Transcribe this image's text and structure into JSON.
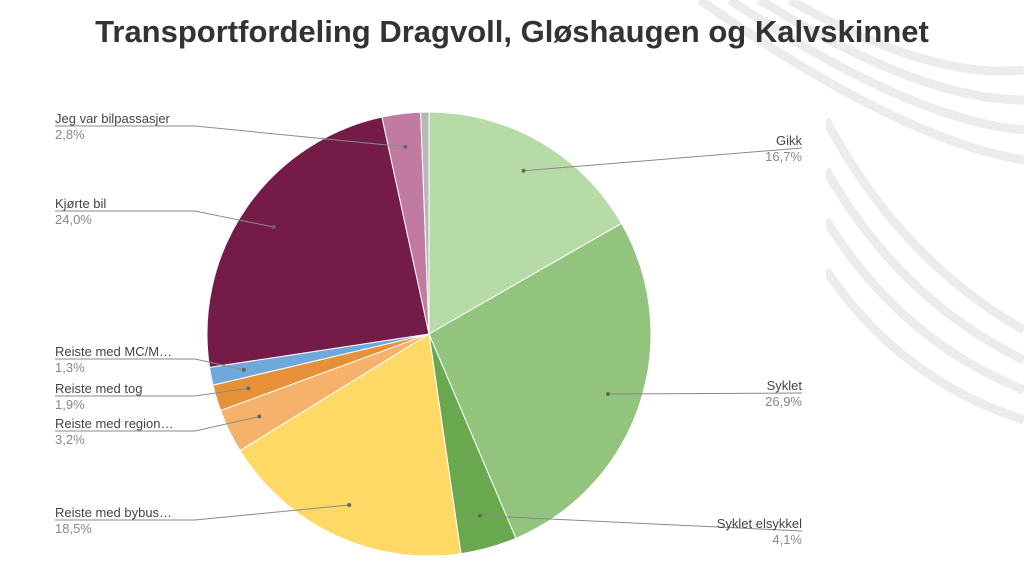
{
  "slide": {
    "title": "Transportfordeling Dragvoll, Gløshaugen og Kalvskinnet"
  },
  "chart_data": {
    "type": "pie",
    "title": "Transportfordeling Dragvoll, Gløshaugen og Kalvskinnet",
    "legend": "none (callout labels)",
    "slices": [
      {
        "label": "Gikk",
        "value_label": "16,7%",
        "value": 16.7,
        "color": "#b7dba7"
      },
      {
        "label": "Syklet",
        "value_label": "26,9%",
        "value": 26.9,
        "color": "#93c47d"
      },
      {
        "label": "Syklet elsykkel",
        "value_label": "4,1%",
        "value": 4.1,
        "color": "#6aa84f"
      },
      {
        "label": "Reiste med bybus…",
        "value_label": "18,5%",
        "value": 18.5,
        "color": "#ffd966"
      },
      {
        "label": "Reiste med region…",
        "value_label": "3,2%",
        "value": 3.2,
        "color": "#f6b26b"
      },
      {
        "label": "Reiste med tog",
        "value_label": "1,9%",
        "value": 1.9,
        "color": "#e69138"
      },
      {
        "label": "Reiste med MC/M…",
        "value_label": "1,3%",
        "value": 1.3,
        "color": "#6fa8dc"
      },
      {
        "label": "Kjørte bil",
        "value_label": "24,0%",
        "value": 24.0,
        "color": "#741b47"
      },
      {
        "label": "Jeg var bilpassasjer",
        "value_label": "2,8%",
        "value": 2.8,
        "color": "#c27ba0"
      },
      {
        "value": 0.6,
        "color": "#b7b7b7"
      }
    ]
  }
}
